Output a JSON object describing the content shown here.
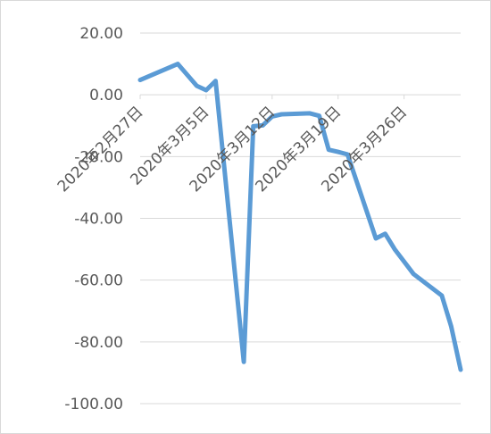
{
  "chart_data": {
    "type": "line",
    "title": "",
    "xlabel": "",
    "ylabel": "",
    "ylim": [
      -100,
      20
    ],
    "y_ticks": [
      20,
      0,
      -20,
      -40,
      -60,
      -80,
      -100
    ],
    "y_tick_labels": [
      "20.00",
      "0.00",
      "-20.00",
      "-40.00",
      "-60.00",
      "-80.00",
      "-100.00"
    ],
    "x_tick_labels": [
      {
        "date": "2020-02-27",
        "label": "2020年2月27日"
      },
      {
        "date": "2020-03-05",
        "label": "2020年3月5日"
      },
      {
        "date": "2020-03-12",
        "label": "2020年3月12日"
      },
      {
        "date": "2020-03-19",
        "label": "2020年3月19日"
      },
      {
        "date": "2020-03-26",
        "label": "2020年3月26日"
      }
    ],
    "xlim": [
      "2020-02-27",
      "2020-04-01"
    ],
    "grid": true,
    "line_color": "#5b9bd5",
    "series": [
      {
        "x": [
          "2020-02-27",
          "2020-03-02",
          "2020-03-04",
          "2020-03-05",
          "2020-03-06",
          "2020-03-09",
          "2020-03-10",
          "2020-03-11",
          "2020-03-12",
          "2020-03-13",
          "2020-03-16",
          "2020-03-17",
          "2020-03-18",
          "2020-03-19",
          "2020-03-20",
          "2020-03-23",
          "2020-03-24",
          "2020-03-25",
          "2020-03-26",
          "2020-03-27",
          "2020-03-30",
          "2020-03-31",
          "2020-04-01"
        ],
        "values": [
          4.8,
          10.0,
          2.9,
          1.5,
          4.5,
          -86.5,
          -10.2,
          -9.9,
          -7.0,
          -6.3,
          -6.0,
          -6.8,
          -17.8,
          -18.5,
          -19.3,
          -46.5,
          -45.0,
          -50.0,
          -54.0,
          -58.0,
          -65.0,
          -75.0,
          -89.0
        ]
      }
    ]
  }
}
